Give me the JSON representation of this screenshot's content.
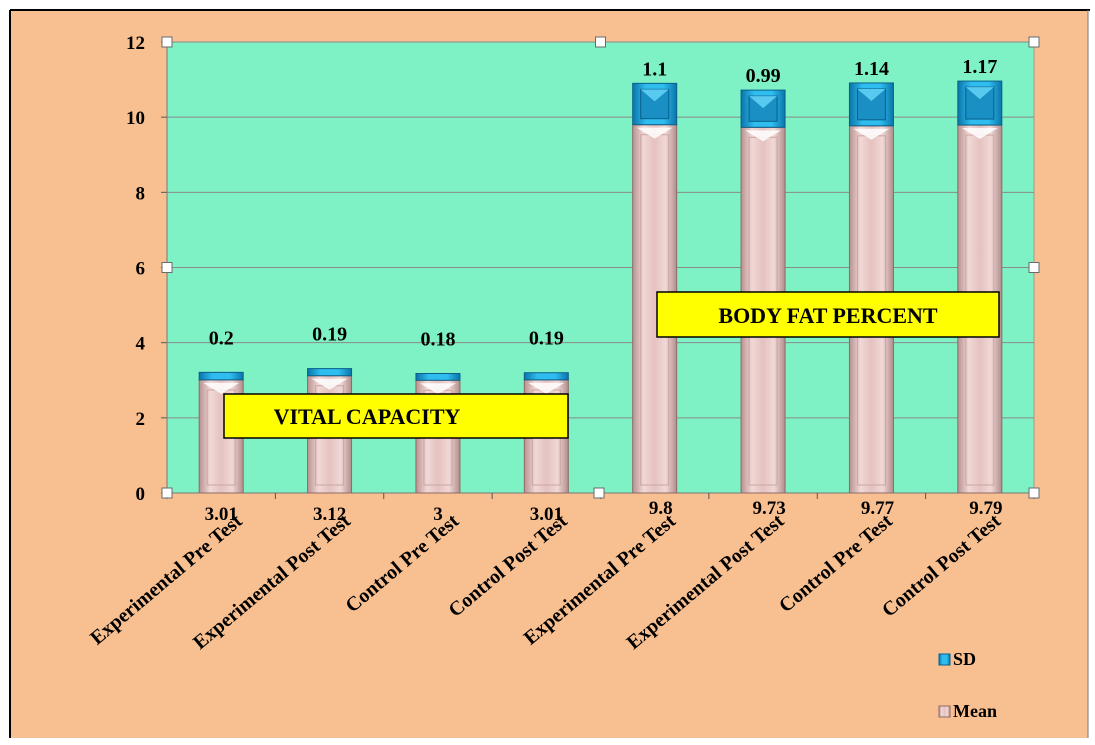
{
  "chart_data": {
    "type": "bar",
    "stacked": true,
    "categories": [
      "Experimental Pre Test",
      "Experimental Post Test",
      "Control Pre Test",
      "Control Post Test",
      "Experimental Pre Test",
      "Experimental Post Test",
      "Control Pre Test",
      "Control Post Test"
    ],
    "series": [
      {
        "name": "Mean",
        "values": [
          3.01,
          3.12,
          3,
          3.01,
          9.8,
          9.73,
          9.77,
          9.79
        ],
        "labels": [
          "3.01",
          "3.12",
          "3",
          "3.01",
          "9.8",
          "9.73",
          "9.77",
          "9.79"
        ]
      },
      {
        "name": "SD",
        "values": [
          0.2,
          0.19,
          0.18,
          0.19,
          1.1,
          0.99,
          1.14,
          1.17
        ],
        "labels": [
          "0.2",
          "0.19",
          "0.18",
          "0.19",
          "1.1",
          "0.99",
          "1.14",
          "1.17"
        ]
      }
    ],
    "ylim": [
      0,
      12
    ],
    "yticks": [
      "0",
      "2",
      "4",
      "6",
      "8",
      "10",
      "12"
    ],
    "grid": true,
    "legend": "bottom-right",
    "annotations": [
      "VITAL CAPACITY",
      "BODY FAT PERCENT"
    ],
    "colors": {
      "outer_background": "#f8c091",
      "plot_background": "#7ff2c5",
      "mean": "#e7c6c4",
      "sd": "#1ea7da",
      "annotation_fill": "#ffff00"
    }
  }
}
